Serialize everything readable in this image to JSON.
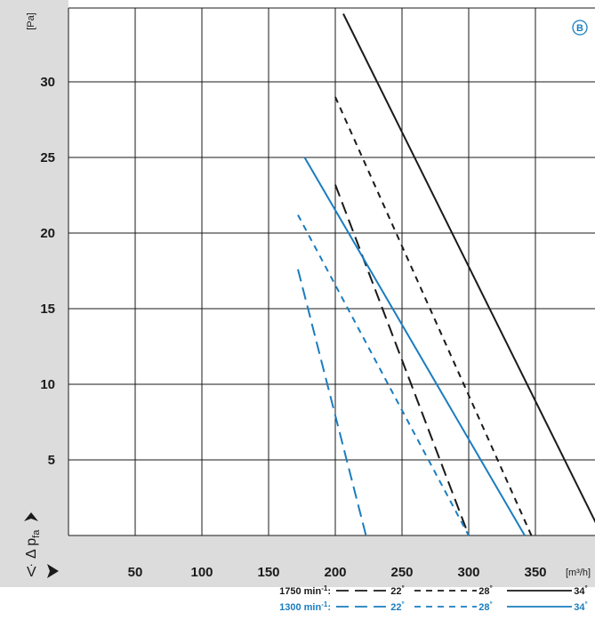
{
  "chart_data": {
    "type": "line",
    "badge": "B",
    "ylabel": "Δ p",
    "ylabel_sub": "fa",
    "yunit": "[Pa]",
    "xlabel": "V̇",
    "xunit": "[m³/h]",
    "xlim": [
      0,
      350
    ],
    "ylim": [
      0,
      34
    ],
    "xticks": [
      50,
      100,
      150,
      200,
      250,
      300,
      350
    ],
    "yticks": [
      5,
      10,
      15,
      20,
      25,
      30
    ],
    "grid": true,
    "colors": {
      "black": "#1a1a1a",
      "blue": "#1a7dbf",
      "band": "#dcdcdc"
    },
    "series": [
      {
        "speed": "1750 min-1",
        "angle": "22°",
        "color": "black",
        "dash": "longdash",
        "x": [
          200,
          300
        ],
        "y": [
          23.2,
          0
        ]
      },
      {
        "speed": "1750 min-1",
        "angle": "28°",
        "color": "black",
        "dash": "dash",
        "x": [
          200,
          347
        ],
        "y": [
          29.0,
          0
        ]
      },
      {
        "speed": "1750 min-1",
        "angle": "34°",
        "color": "black",
        "dash": "solid",
        "x": [
          206,
          400
        ],
        "y": [
          34.5,
          0
        ]
      },
      {
        "speed": "1300 min-1",
        "angle": "22°",
        "color": "blue",
        "dash": "longdash",
        "x": [
          172,
          223
        ],
        "y": [
          17.6,
          0
        ]
      },
      {
        "speed": "1300 min-1",
        "angle": "28°",
        "color": "blue",
        "dash": "dash",
        "x": [
          172,
          300
        ],
        "y": [
          21.2,
          0
        ]
      },
      {
        "speed": "1300 min-1",
        "angle": "34°",
        "color": "blue",
        "dash": "solid",
        "x": [
          177,
          342
        ],
        "y": [
          25.0,
          0
        ]
      }
    ],
    "legend": [
      {
        "label": "1750 min",
        "sup": "-1",
        "colon": ":",
        "color": "black",
        "entries": [
          {
            "angle": "22",
            "deg": "°",
            "dash": "longdash"
          },
          {
            "angle": "28",
            "deg": "°",
            "dash": "dash"
          },
          {
            "angle": "34",
            "deg": "°",
            "dash": "solid"
          }
        ]
      },
      {
        "label": "1300 min",
        "sup": "-1",
        "colon": ":",
        "color": "blue",
        "entries": [
          {
            "angle": "22",
            "deg": "°",
            "dash": "longdash"
          },
          {
            "angle": "28",
            "deg": "°",
            "dash": "dash"
          },
          {
            "angle": "34",
            "deg": "°",
            "dash": "solid"
          }
        ]
      }
    ]
  }
}
